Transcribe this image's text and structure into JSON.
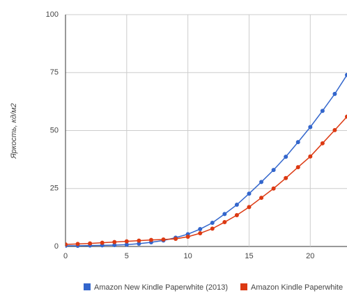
{
  "chart_data": {
    "type": "line",
    "y_label": "Яркость, кд/м2",
    "x": [
      0,
      1,
      2,
      3,
      4,
      5,
      6,
      7,
      8,
      9,
      10,
      11,
      12,
      13,
      14,
      15,
      16,
      17,
      18,
      19,
      20,
      21,
      22,
      23
    ],
    "series": [
      {
        "name": "Amazon New Kindle Paperwhite (2013)",
        "color": "#3366cc",
        "values": [
          0.3,
          0.3,
          0.4,
          0.5,
          0.6,
          0.8,
          1.2,
          1.8,
          2.6,
          3.8,
          5.3,
          7.5,
          10.2,
          14,
          18,
          22.8,
          27.8,
          33,
          38.7,
          45,
          51.5,
          58.5,
          65.8,
          74
        ]
      },
      {
        "name": "Amazon Kindle Paperwhite",
        "color": "#dc3912",
        "values": [
          0.9,
          1.1,
          1.3,
          1.6,
          1.9,
          2.2,
          2.5,
          2.8,
          3.0,
          3.3,
          4.2,
          5.7,
          7.7,
          10.5,
          13.5,
          17,
          21,
          25,
          29.5,
          34.2,
          38.8,
          44.5,
          50.2,
          56
        ]
      }
    ],
    "xlim": [
      0,
      23
    ],
    "xticks": [
      0,
      5,
      10,
      15,
      20
    ],
    "ylim": [
      0,
      100
    ],
    "yticks": [
      0,
      25,
      50,
      75,
      100
    ],
    "grid": true,
    "legend": "bottom"
  }
}
